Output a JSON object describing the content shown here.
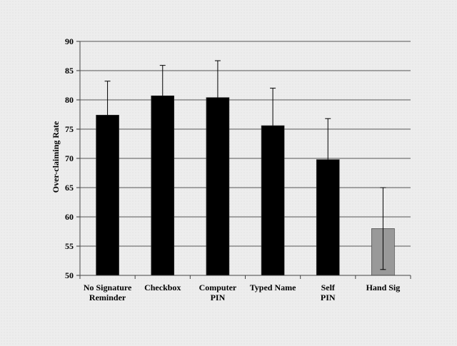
{
  "chart_data": {
    "type": "bar",
    "title": "",
    "xlabel": "",
    "ylabel": "Over-claiming Rate",
    "ylim": [
      50,
      90
    ],
    "yticks": [
      50,
      55,
      60,
      65,
      70,
      75,
      80,
      85,
      90
    ],
    "grid": true,
    "legend": "none",
    "categories": [
      [
        "No Signature",
        "Reminder"
      ],
      [
        "Checkbox"
      ],
      [
        "Computer",
        "PIN"
      ],
      [
        "Typed Name"
      ],
      [
        "Self",
        "PIN"
      ],
      [
        "Hand Sig"
      ]
    ],
    "values": [
      77.4,
      80.7,
      80.4,
      75.6,
      69.8,
      58.0
    ],
    "error_upper": [
      83.2,
      85.9,
      86.7,
      82.0,
      76.8,
      65.0
    ],
    "error_lower": [
      null,
      null,
      null,
      null,
      null,
      51.0
    ],
    "bar_colors": [
      "#000000",
      "#000000",
      "#000000",
      "#000000",
      "#000000",
      "#999999"
    ]
  }
}
